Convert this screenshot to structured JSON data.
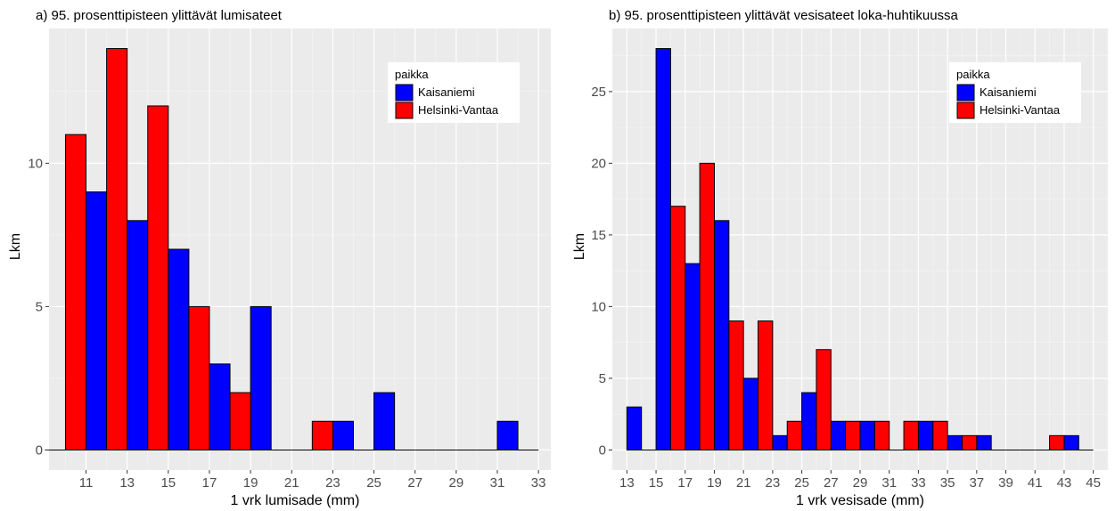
{
  "chart_data": [
    {
      "type": "bar",
      "title": "a) 95. prosenttipisteen ylittävät lumisateet",
      "xlabel": "1 vrk lumisade (mm)",
      "ylabel": "Lkm",
      "xlim": [
        9.2,
        33.6
      ],
      "ylim": [
        -0.7,
        14.7
      ],
      "x_ticks": [
        11,
        13,
        15,
        17,
        19,
        21,
        23,
        25,
        27,
        29,
        31,
        33
      ],
      "y_ticks": [
        0,
        5,
        10
      ],
      "bin_width": 2,
      "grid": true,
      "legend": {
        "title": "paikka",
        "position": "top-right"
      },
      "series": [
        {
          "name": "Kaisaniemi",
          "color": "#0000ff",
          "x": [
            10,
            12,
            14,
            16,
            18,
            20,
            22,
            24,
            26,
            28,
            30,
            32
          ],
          "values": [
            0,
            9,
            8,
            7,
            3,
            5,
            0,
            1,
            2,
            0,
            0,
            1
          ]
        },
        {
          "name": "Helsinki-Vantaa",
          "color": "#ff0000",
          "x": [
            10,
            12,
            14,
            16,
            18,
            20,
            22,
            24,
            26,
            28,
            30,
            32
          ],
          "values": [
            11,
            14,
            12,
            5,
            2,
            0,
            1,
            0,
            0,
            0,
            0,
            0
          ]
        }
      ]
    },
    {
      "type": "bar",
      "title": "b) 95. prosenttipisteen ylittävät vesisateet loka-huhtikuussa",
      "xlabel": "1 vrk vesisade (mm)",
      "ylabel": "Lkm",
      "xlim": [
        12.0,
        46.0
      ],
      "ylim": [
        -1.4,
        29.4
      ],
      "x_ticks": [
        13,
        15,
        17,
        19,
        21,
        23,
        25,
        27,
        29,
        31,
        33,
        35,
        37,
        39,
        41,
        43,
        45
      ],
      "y_ticks": [
        0,
        5,
        10,
        15,
        20,
        25
      ],
      "bin_width": 2,
      "grid": true,
      "legend": {
        "title": "paikka",
        "position": "top-right"
      },
      "series": [
        {
          "name": "Kaisaniemi",
          "color": "#0000ff",
          "x": [
            14,
            16,
            18,
            20,
            22,
            24,
            26,
            28,
            30,
            32,
            34,
            36,
            38,
            40,
            42,
            44
          ],
          "values": [
            3,
            28,
            13,
            16,
            5,
            1,
            4,
            2,
            2,
            0,
            2,
            1,
            1,
            0,
            0,
            1
          ]
        },
        {
          "name": "Helsinki-Vantaa",
          "color": "#ff0000",
          "x": [
            14,
            16,
            18,
            20,
            22,
            24,
            26,
            28,
            30,
            32,
            34,
            36,
            38,
            40,
            42,
            44
          ],
          "values": [
            0,
            17,
            20,
            9,
            9,
            2,
            7,
            2,
            2,
            2,
            2,
            1,
            0,
            0,
            1,
            0
          ]
        }
      ]
    }
  ]
}
